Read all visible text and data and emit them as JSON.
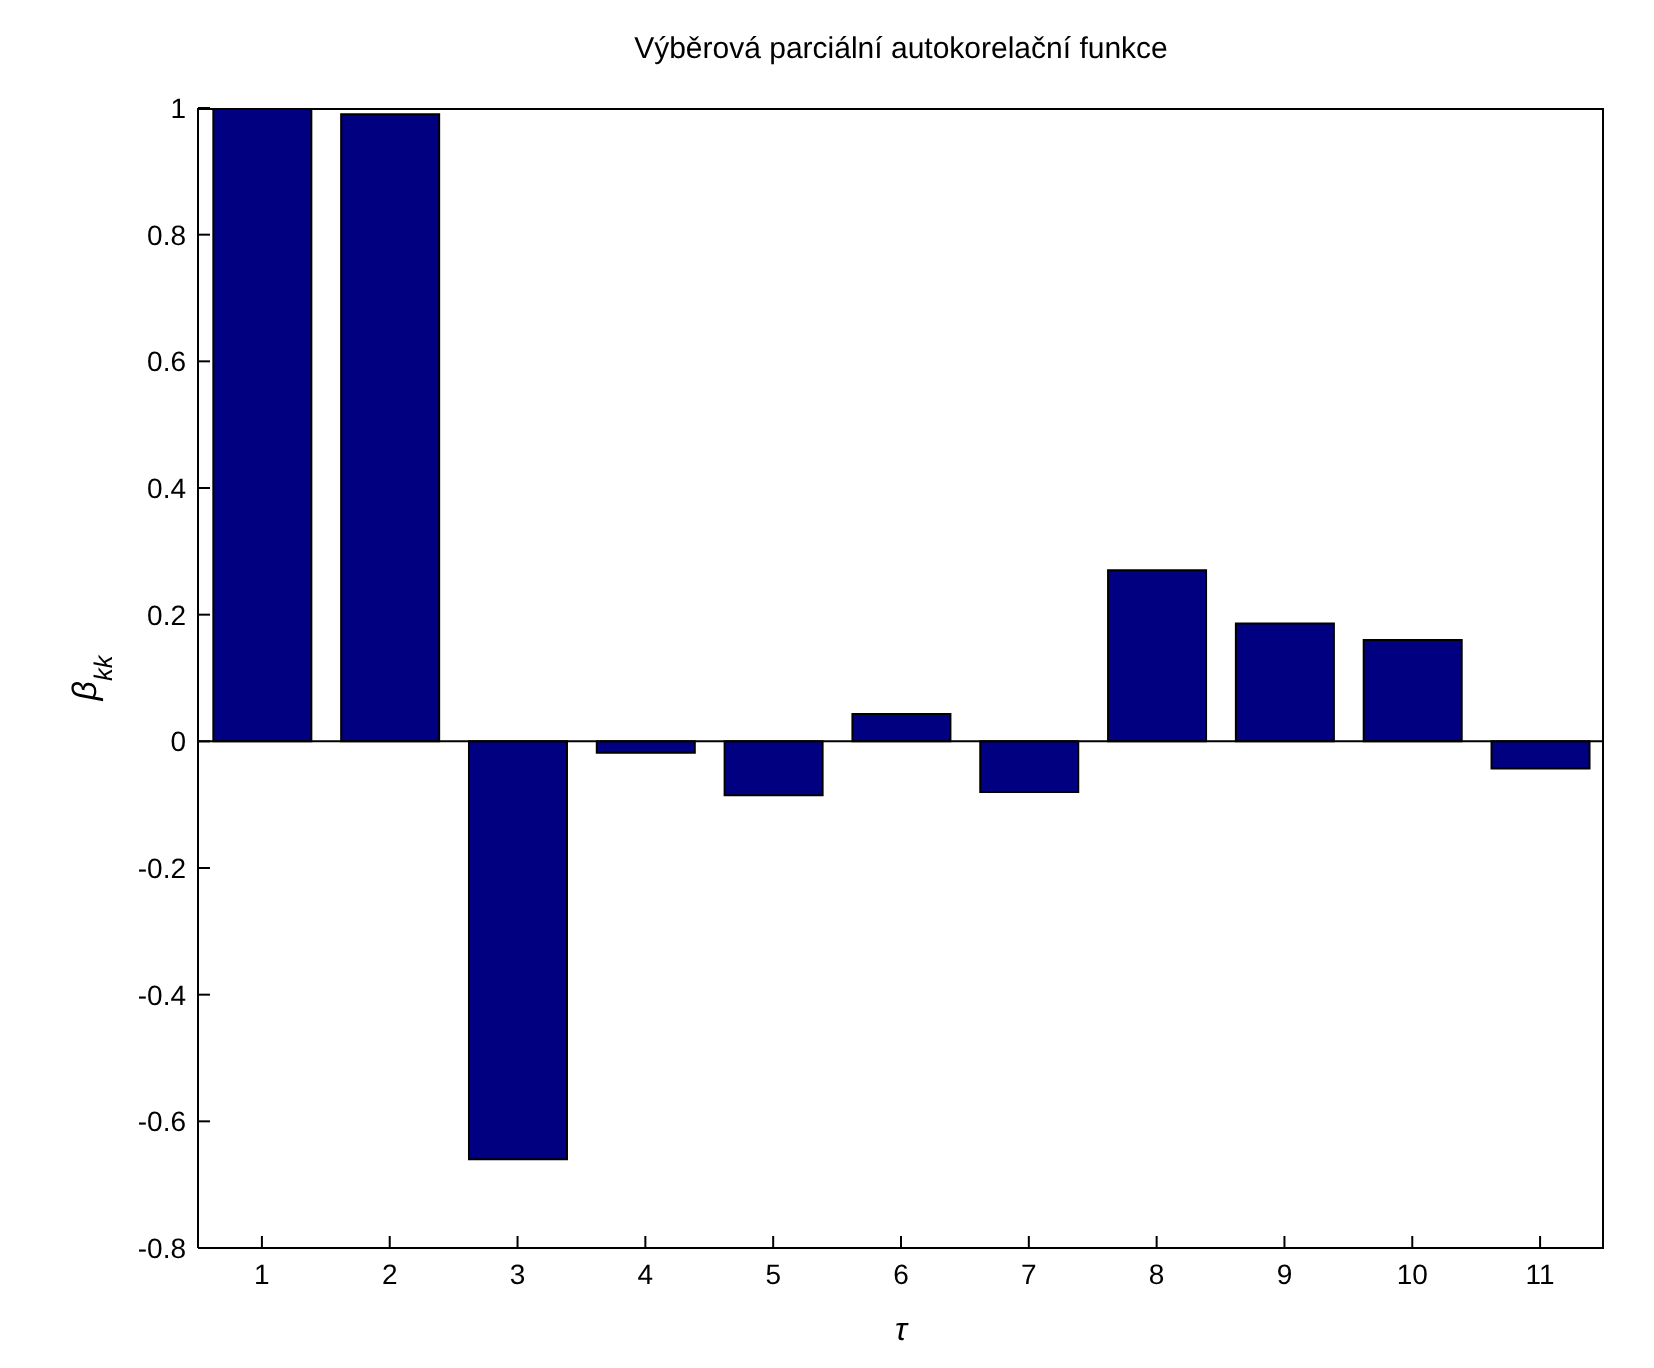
{
  "chart_data": {
    "type": "bar",
    "title": "Výběrová parciální autokorelační funkce",
    "xlabel": "τ",
    "ylabel": "β$_{kk}$",
    "categories": [
      "1",
      "2",
      "3",
      "4",
      "5",
      "6",
      "7",
      "8",
      "9",
      "10",
      "11"
    ],
    "values": [
      1.0,
      0.99,
      -0.66,
      -0.018,
      -0.085,
      0.043,
      -0.08,
      0.27,
      0.186,
      0.16,
      -0.043
    ],
    "color": "#000080",
    "ylim": [
      -0.8,
      1
    ],
    "yticks": [
      -0.8,
      -0.6,
      -0.4,
      -0.2,
      0,
      0.2,
      0.4,
      0.6,
      0.8,
      1
    ],
    "legend": false
  }
}
